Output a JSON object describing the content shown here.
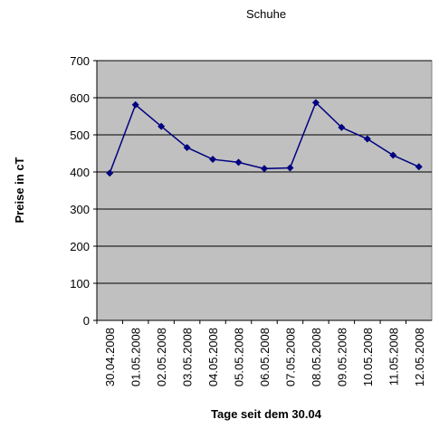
{
  "chart_data": {
    "type": "line",
    "title": "Schuhe",
    "y_label": "Preise in cT",
    "x_label": "Tage seit dem 30.04",
    "categories": [
      "30.04.2008",
      "01.05.2008",
      "02.05.2008",
      "03.05.2008",
      "04.05.2008",
      "05.05.2008",
      "06.05.2008",
      "07.05.2008",
      "08.05.2008",
      "09.05.2008",
      "10.05.2008",
      "11.05.2008",
      "12.05.2008"
    ],
    "values": [
      397,
      581,
      523,
      466,
      434,
      426,
      409,
      411,
      587,
      520,
      489,
      445,
      414
    ],
    "color": "#000080",
    "plot_background": "#c0c0c0",
    "ylim": [
      0,
      700
    ],
    "yticks": [
      0,
      100,
      200,
      300,
      400,
      500,
      600,
      700
    ],
    "grid": true
  }
}
